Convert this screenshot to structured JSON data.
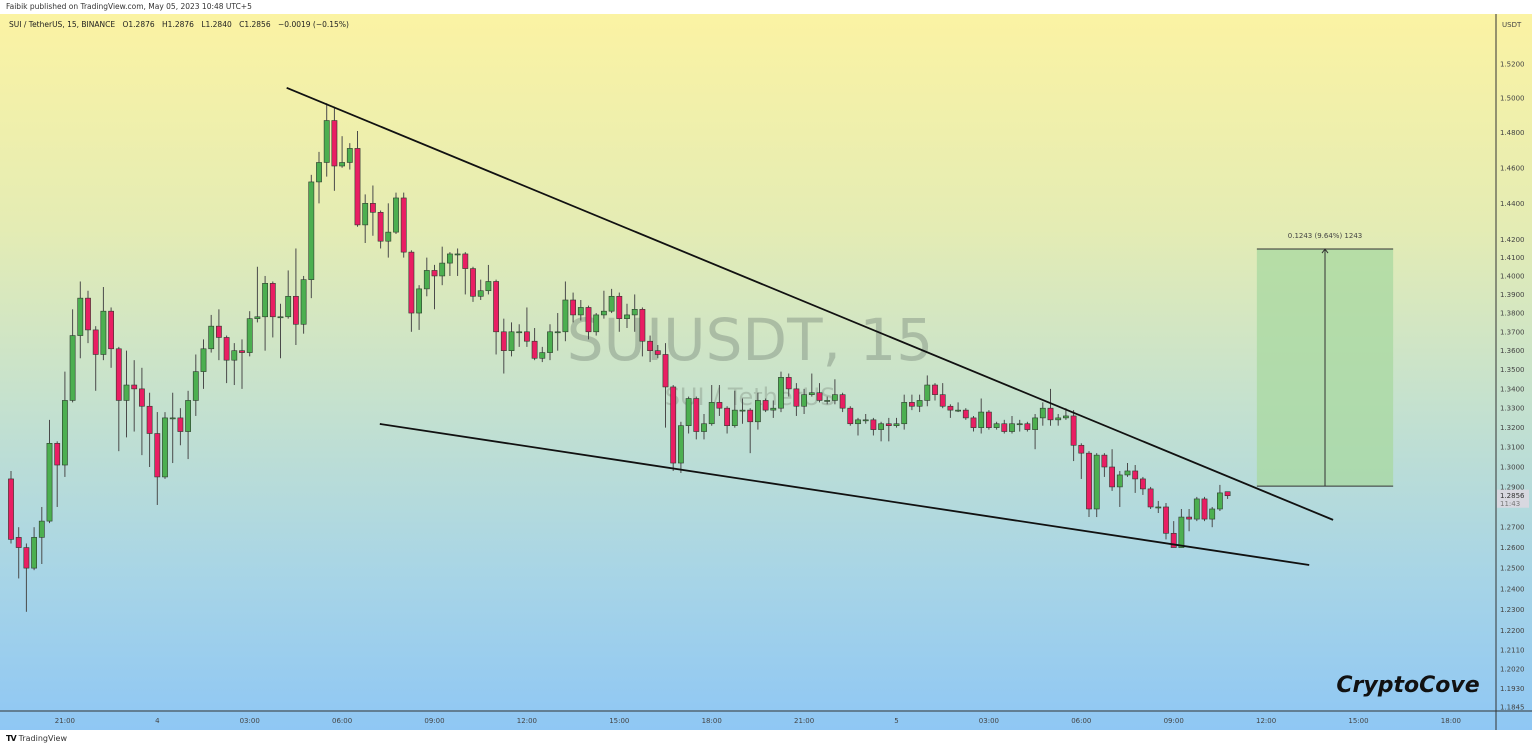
{
  "header": {
    "published": "Faibik published on TradingView.com, May 05, 2023 10:48 UTC+5"
  },
  "legend": {
    "symbol": "SUI / TetherUS, 15, BINANCE",
    "open": "O1.2876",
    "high": "H1.2876",
    "low": "L1.2840",
    "close": "C1.2856",
    "change": "−0.0019 (−0.15%)"
  },
  "watermark": {
    "title": "SUIUSDT, 15",
    "subtitle": "SUI / TetherUS"
  },
  "brand": "CryptoCove",
  "footer": {
    "logo": "TV",
    "name": "TradingView"
  },
  "colors": {
    "up": "#4caf50",
    "down": "#e91e63",
    "outline": "#2e3b2e",
    "wick": "#4a4a4a",
    "trendline": "#111111",
    "measure_fill": "#a8d8a0"
  },
  "chart_data": {
    "type": "candlestick",
    "symbol": "SUIUSDT",
    "interval_minutes": 15,
    "y_scale": "log",
    "y_unit": "USDT",
    "ylim": [
      1.1845,
      1.546
    ],
    "grid": false,
    "y_ticks": [
      "1.5200",
      "1.5000",
      "1.4800",
      "1.4600",
      "1.4400",
      "1.4200",
      "1.4100",
      "1.4000",
      "1.3900",
      "1.3800",
      "1.3700",
      "1.3600",
      "1.3500",
      "1.3400",
      "1.3300",
      "1.3200",
      "1.3100",
      "1.3000",
      "1.2900",
      "1.2700",
      "1.2600",
      "1.2500",
      "1.2400",
      "1.2300",
      "1.2200",
      "1.2110",
      "1.2020",
      "1.1930",
      "1.1845"
    ],
    "last_price": {
      "value": "1.2856",
      "countdown": "11:43"
    },
    "x_ticks": [
      {
        "i": 7,
        "label": "21:00"
      },
      {
        "i": 19,
        "label": "4"
      },
      {
        "i": 31,
        "label": "03:00"
      },
      {
        "i": 43,
        "label": "06:00"
      },
      {
        "i": 55,
        "label": "09:00"
      },
      {
        "i": 67,
        "label": "12:00"
      },
      {
        "i": 79,
        "label": "15:00"
      },
      {
        "i": 91,
        "label": "18:00"
      },
      {
        "i": 103,
        "label": "21:00"
      },
      {
        "i": 115,
        "label": "5"
      },
      {
        "i": 127,
        "label": "03:00"
      },
      {
        "i": 139,
        "label": "06:00"
      },
      {
        "i": 151,
        "label": "09:00"
      },
      {
        "i": 163,
        "label": "12:00"
      },
      {
        "i": 175,
        "label": "15:00"
      },
      {
        "i": 187,
        "label": "18:00"
      }
    ],
    "candles_ohlc": [
      [
        1.294,
        1.298,
        1.262,
        1.264
      ],
      [
        1.265,
        1.27,
        1.245,
        1.26
      ],
      [
        1.26,
        1.262,
        1.229,
        1.25
      ],
      [
        1.25,
        1.27,
        1.249,
        1.265
      ],
      [
        1.265,
        1.28,
        1.252,
        1.273
      ],
      [
        1.273,
        1.324,
        1.272,
        1.312
      ],
      [
        1.312,
        1.313,
        1.28,
        1.301
      ],
      [
        1.301,
        1.349,
        1.295,
        1.334
      ],
      [
        1.334,
        1.382,
        1.333,
        1.368
      ],
      [
        1.368,
        1.397,
        1.356,
        1.388
      ],
      [
        1.388,
        1.392,
        1.364,
        1.371
      ],
      [
        1.371,
        1.373,
        1.339,
        1.358
      ],
      [
        1.358,
        1.394,
        1.355,
        1.381
      ],
      [
        1.381,
        1.383,
        1.351,
        1.361
      ],
      [
        1.361,
        1.362,
        1.308,
        1.334
      ],
      [
        1.334,
        1.36,
        1.315,
        1.342
      ],
      [
        1.342,
        1.355,
        1.318,
        1.34
      ],
      [
        1.34,
        1.351,
        1.306,
        1.331
      ],
      [
        1.331,
        1.338,
        1.3,
        1.317
      ],
      [
        1.317,
        1.328,
        1.281,
        1.295
      ],
      [
        1.295,
        1.328,
        1.294,
        1.325
      ],
      [
        1.325,
        1.338,
        1.302,
        1.325
      ],
      [
        1.325,
        1.33,
        1.311,
        1.318
      ],
      [
        1.318,
        1.339,
        1.304,
        1.334
      ],
      [
        1.334,
        1.358,
        1.326,
        1.349
      ],
      [
        1.349,
        1.366,
        1.34,
        1.361
      ],
      [
        1.361,
        1.379,
        1.359,
        1.373
      ],
      [
        1.373,
        1.382,
        1.355,
        1.367
      ],
      [
        1.367,
        1.368,
        1.343,
        1.355
      ],
      [
        1.355,
        1.364,
        1.342,
        1.36
      ],
      [
        1.36,
        1.366,
        1.34,
        1.359
      ],
      [
        1.359,
        1.381,
        1.357,
        1.377
      ],
      [
        1.377,
        1.405,
        1.375,
        1.378
      ],
      [
        1.378,
        1.4,
        1.36,
        1.396
      ],
      [
        1.396,
        1.397,
        1.367,
        1.378
      ],
      [
        1.378,
        1.385,
        1.356,
        1.378
      ],
      [
        1.378,
        1.403,
        1.377,
        1.389
      ],
      [
        1.389,
        1.415,
        1.363,
        1.374
      ],
      [
        1.374,
        1.4,
        1.369,
        1.398
      ],
      [
        1.398,
        1.456,
        1.388,
        1.452
      ],
      [
        1.452,
        1.469,
        1.44,
        1.463
      ],
      [
        1.463,
        1.497,
        1.455,
        1.487
      ],
      [
        1.487,
        1.495,
        1.447,
        1.461
      ],
      [
        1.461,
        1.478,
        1.46,
        1.463
      ],
      [
        1.463,
        1.474,
        1.459,
        1.471
      ],
      [
        1.471,
        1.481,
        1.427,
        1.428
      ],
      [
        1.428,
        1.445,
        1.418,
        1.44
      ],
      [
        1.44,
        1.45,
        1.422,
        1.435
      ],
      [
        1.435,
        1.436,
        1.415,
        1.419
      ],
      [
        1.419,
        1.44,
        1.41,
        1.424
      ],
      [
        1.424,
        1.446,
        1.423,
        1.443
      ],
      [
        1.443,
        1.446,
        1.41,
        1.413
      ],
      [
        1.413,
        1.414,
        1.37,
        1.38
      ],
      [
        1.38,
        1.395,
        1.371,
        1.393
      ],
      [
        1.393,
        1.41,
        1.389,
        1.403
      ],
      [
        1.403,
        1.406,
        1.382,
        1.4
      ],
      [
        1.4,
        1.416,
        1.395,
        1.407
      ],
      [
        1.407,
        1.413,
        1.4,
        1.412
      ],
      [
        1.412,
        1.415,
        1.4,
        1.412
      ],
      [
        1.412,
        1.413,
        1.39,
        1.404
      ],
      [
        1.404,
        1.405,
        1.386,
        1.389
      ],
      [
        1.389,
        1.398,
        1.387,
        1.392
      ],
      [
        1.392,
        1.406,
        1.39,
        1.397
      ],
      [
        1.397,
        1.398,
        1.358,
        1.37
      ],
      [
        1.37,
        1.377,
        1.348,
        1.36
      ],
      [
        1.36,
        1.375,
        1.357,
        1.37
      ],
      [
        1.37,
        1.374,
        1.362,
        1.37
      ],
      [
        1.37,
        1.383,
        1.362,
        1.365
      ],
      [
        1.365,
        1.372,
        1.355,
        1.356
      ],
      [
        1.356,
        1.362,
        1.354,
        1.359
      ],
      [
        1.359,
        1.374,
        1.355,
        1.37
      ],
      [
        1.37,
        1.38,
        1.36,
        1.37
      ],
      [
        1.37,
        1.397,
        1.365,
        1.387
      ],
      [
        1.387,
        1.391,
        1.375,
        1.379
      ],
      [
        1.379,
        1.387,
        1.376,
        1.383
      ],
      [
        1.383,
        1.384,
        1.366,
        1.37
      ],
      [
        1.37,
        1.38,
        1.368,
        1.379
      ],
      [
        1.379,
        1.392,
        1.377,
        1.381
      ],
      [
        1.381,
        1.393,
        1.38,
        1.389
      ],
      [
        1.389,
        1.391,
        1.37,
        1.377
      ],
      [
        1.377,
        1.385,
        1.372,
        1.379
      ],
      [
        1.379,
        1.39,
        1.37,
        1.382
      ],
      [
        1.382,
        1.383,
        1.357,
        1.365
      ],
      [
        1.365,
        1.368,
        1.354,
        1.36
      ],
      [
        1.36,
        1.363,
        1.356,
        1.358
      ],
      [
        1.358,
        1.364,
        1.32,
        1.341
      ],
      [
        1.341,
        1.342,
        1.298,
        1.302
      ],
      [
        1.302,
        1.323,
        1.297,
        1.321
      ],
      [
        1.321,
        1.336,
        1.317,
        1.335
      ],
      [
        1.335,
        1.336,
        1.314,
        1.318
      ],
      [
        1.318,
        1.327,
        1.314,
        1.322
      ],
      [
        1.322,
        1.342,
        1.321,
        1.333
      ],
      [
        1.333,
        1.342,
        1.326,
        1.33
      ],
      [
        1.33,
        1.331,
        1.317,
        1.321
      ],
      [
        1.321,
        1.339,
        1.32,
        1.329
      ],
      [
        1.329,
        1.335,
        1.322,
        1.329
      ],
      [
        1.329,
        1.33,
        1.307,
        1.323
      ],
      [
        1.323,
        1.338,
        1.319,
        1.334
      ],
      [
        1.334,
        1.335,
        1.328,
        1.329
      ],
      [
        1.329,
        1.334,
        1.325,
        1.33
      ],
      [
        1.33,
        1.349,
        1.328,
        1.346
      ],
      [
        1.346,
        1.348,
        1.336,
        1.34
      ],
      [
        1.34,
        1.343,
        1.326,
        1.331
      ],
      [
        1.331,
        1.34,
        1.327,
        1.337
      ],
      [
        1.337,
        1.348,
        1.336,
        1.338
      ],
      [
        1.338,
        1.343,
        1.333,
        1.334
      ],
      [
        1.334,
        1.336,
        1.332,
        1.334
      ],
      [
        1.334,
        1.345,
        1.332,
        1.337
      ],
      [
        1.337,
        1.338,
        1.328,
        1.33
      ],
      [
        1.33,
        1.331,
        1.321,
        1.322
      ],
      [
        1.322,
        1.325,
        1.316,
        1.324
      ],
      [
        1.324,
        1.327,
        1.322,
        1.324
      ],
      [
        1.324,
        1.325,
        1.316,
        1.319
      ],
      [
        1.319,
        1.323,
        1.313,
        1.322
      ],
      [
        1.322,
        1.325,
        1.313,
        1.321
      ],
      [
        1.321,
        1.325,
        1.32,
        1.322
      ],
      [
        1.322,
        1.337,
        1.319,
        1.333
      ],
      [
        1.333,
        1.337,
        1.329,
        1.331
      ],
      [
        1.331,
        1.337,
        1.328,
        1.334
      ],
      [
        1.334,
        1.347,
        1.331,
        1.342
      ],
      [
        1.342,
        1.343,
        1.334,
        1.337
      ],
      [
        1.337,
        1.343,
        1.33,
        1.331
      ],
      [
        1.331,
        1.332,
        1.325,
        1.329
      ],
      [
        1.329,
        1.333,
        1.328,
        1.329
      ],
      [
        1.329,
        1.33,
        1.324,
        1.325
      ],
      [
        1.325,
        1.326,
        1.318,
        1.32
      ],
      [
        1.32,
        1.335,
        1.317,
        1.328
      ],
      [
        1.328,
        1.329,
        1.319,
        1.32
      ],
      [
        1.32,
        1.323,
        1.319,
        1.322
      ],
      [
        1.322,
        1.324,
        1.317,
        1.318
      ],
      [
        1.318,
        1.326,
        1.317,
        1.322
      ],
      [
        1.322,
        1.324,
        1.318,
        1.322
      ],
      [
        1.322,
        1.323,
        1.318,
        1.319
      ],
      [
        1.319,
        1.327,
        1.309,
        1.325
      ],
      [
        1.325,
        1.333,
        1.321,
        1.33
      ],
      [
        1.33,
        1.34,
        1.321,
        1.324
      ],
      [
        1.324,
        1.327,
        1.321,
        1.325
      ],
      [
        1.325,
        1.33,
        1.324,
        1.326
      ],
      [
        1.326,
        1.329,
        1.303,
        1.311
      ],
      [
        1.311,
        1.312,
        1.294,
        1.307
      ],
      [
        1.307,
        1.308,
        1.275,
        1.279
      ],
      [
        1.279,
        1.307,
        1.275,
        1.306
      ],
      [
        1.306,
        1.307,
        1.295,
        1.3
      ],
      [
        1.3,
        1.309,
        1.288,
        1.29
      ],
      [
        1.29,
        1.298,
        1.28,
        1.296
      ],
      [
        1.296,
        1.302,
        1.295,
        1.298
      ],
      [
        1.298,
        1.301,
        1.287,
        1.294
      ],
      [
        1.294,
        1.295,
        1.286,
        1.289
      ],
      [
        1.289,
        1.29,
        1.279,
        1.28
      ],
      [
        1.28,
        1.283,
        1.277,
        1.28
      ],
      [
        1.28,
        1.282,
        1.264,
        1.267
      ],
      [
        1.267,
        1.273,
        1.26,
        1.26
      ],
      [
        1.26,
        1.279,
        1.26,
        1.275
      ],
      [
        1.275,
        1.279,
        1.268,
        1.274
      ],
      [
        1.274,
        1.285,
        1.273,
        1.284
      ],
      [
        1.284,
        1.285,
        1.273,
        1.274
      ],
      [
        1.274,
        1.28,
        1.27,
        1.279
      ],
      [
        1.279,
        1.291,
        1.278,
        1.287
      ],
      [
        1.2876,
        1.2876,
        1.284,
        1.2856
      ]
    ],
    "trendlines": [
      {
        "name": "upper",
        "from": {
          "i": 35.8,
          "price": 1.506
        },
        "to": {
          "i": 171.7,
          "price": 1.2736
        }
      },
      {
        "name": "lower",
        "from": {
          "i": 47.9,
          "price": 1.3219
        },
        "to": {
          "i": 168.6,
          "price": 1.2515
        }
      }
    ],
    "measure": {
      "from_i": 161.8,
      "to_i": 179.5,
      "low": 1.2904,
      "high": 1.4147,
      "label": "0.1243 (9.64%) 1243"
    }
  }
}
